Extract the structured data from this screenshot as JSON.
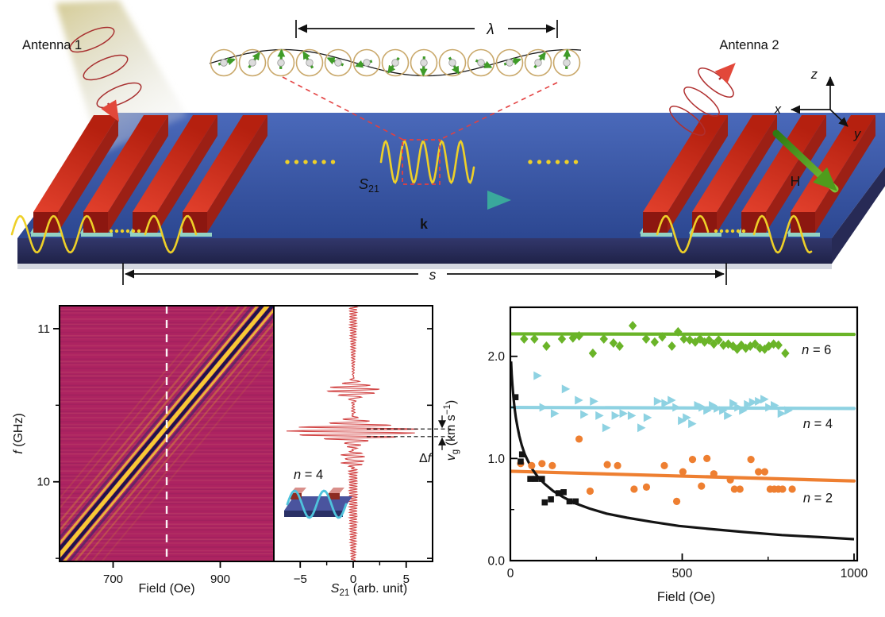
{
  "figure": {
    "type": "scientific-figure",
    "background": "#ffffff"
  },
  "diagram": {
    "antenna1_label": "Antenna 1",
    "antenna2_label": "Antenna 2",
    "lambda_label": "λ",
    "s21_main": "S",
    "s21_sub": "21",
    "k_label": "k",
    "h_label": "H",
    "axis_x": "x",
    "axis_y": "y",
    "axis_z": "z",
    "s_label": "s",
    "colors": {
      "substrate_top": "#33539f",
      "substrate_front": "#262a57",
      "electrode_top": "#d93420",
      "electrode_front": "#8c1710",
      "electrode_side": "#9c2015",
      "electrode_pad": "#93d2c4",
      "spin_wave_yellow": "#eed028",
      "precession_arrow_green": "#3f9b28",
      "precession_ring_tan": "#c9a86a",
      "k_arrow_teal": "#3aa89c",
      "h_arrow_green": "#55a322",
      "dashed_red": "#e34040"
    }
  },
  "chart_data": [
    {
      "id": "dispersion_heatmap",
      "type": "heatmap",
      "xlabel": "Field (Oe)",
      "ylabel_parts": [
        {
          "t": "f",
          "italic": true
        },
        {
          "t": " (GHz)"
        }
      ],
      "xlim": [
        600,
        1000
      ],
      "ylim": [
        9.48,
        11.15
      ],
      "xticks": [
        {
          "v": 700,
          "label": "700"
        },
        {
          "v": 900,
          "label": "900"
        }
      ],
      "yticks": [
        {
          "v": 11,
          "label": "11"
        },
        {
          "v": 10,
          "label": "10"
        }
      ],
      "yticks_minor": [
        10.5,
        9.5
      ],
      "colormap_bg": "#ad2361",
      "stripe_bright": "#f6cb35",
      "stripe_dark": "#15154a",
      "dashed_guide_x": 800,
      "band": {
        "x": [
          600,
          1000
        ],
        "f": [
          9.52,
          11.2
        ],
        "note": "spin-wave transmission band"
      }
    },
    {
      "id": "s21_trace",
      "type": "line",
      "xlabel_parts": [
        {
          "t": "S",
          "italic": true
        },
        {
          "t": "21",
          "script": "sub"
        },
        {
          "t": " (arb. unit)"
        }
      ],
      "xlim": [
        -7.4,
        7.4
      ],
      "xticks": [
        {
          "v": -5,
          "label": "−5"
        },
        {
          "v": 0,
          "label": "0"
        },
        {
          "v": 5,
          "label": "5"
        }
      ],
      "xticks_minor": [
        -2.5,
        2.5
      ],
      "ylim": [
        9.48,
        11.15
      ],
      "right_ticks": [
        9.5,
        10,
        10.5,
        11
      ],
      "color": "#d24646",
      "packets": [
        {
          "center_ghz": 10.33,
          "amplitude": 6.4,
          "sigma_ghz": 0.055
        },
        {
          "center_ghz": 10.6,
          "amplitude": 2.6,
          "sigma_ghz": 0.045
        },
        {
          "center_ghz": 10.15,
          "amplitude": 1.1,
          "sigma_ghz": 0.05
        }
      ],
      "noise_amplitude": 0.4,
      "carrier_period_ghz": 0.026,
      "delta_f_parts": [
        {
          "t": "Δ"
        },
        {
          "t": "f",
          "italic": true
        }
      ],
      "delta_f_guides_ghz": [
        10.345,
        10.295
      ],
      "inset_label_parts": [
        {
          "t": "n",
          "italic": true
        },
        {
          "t": " = 4"
        }
      ],
      "inset_color": "#4fc3dc"
    },
    {
      "id": "group_velocity",
      "type": "scatter",
      "xlabel": "Field (Oe)",
      "ylabel_parts": [
        {
          "t": "v",
          "italic": true
        },
        {
          "t": "g",
          "script": "sub"
        },
        {
          "t": " (km s"
        },
        {
          "t": "−1",
          "script": "super"
        },
        {
          "t": ")"
        }
      ],
      "xlim": [
        0,
        1010
      ],
      "ylim": [
        0,
        2.48
      ],
      "xticks": [
        {
          "v": 0,
          "label": "0"
        },
        {
          "v": 500,
          "label": "500"
        },
        {
          "v": 1000,
          "label": "1000"
        }
      ],
      "xticks_minor": [
        250,
        750
      ],
      "yticks": [
        {
          "v": 0,
          "label": "0.0"
        },
        {
          "v": 1,
          "label": "1.0"
        },
        {
          "v": 2,
          "label": "2.0"
        }
      ],
      "yticks_minor": [
        0.5,
        1.5
      ],
      "series": [
        {
          "name": "n = 6",
          "label_parts": [
            {
              "t": "n",
              "italic": true
            },
            {
              "t": " = 6"
            }
          ],
          "label_xy": [
            848,
            2.02
          ],
          "marker": "diamond",
          "color": "#6ab428",
          "fit_line": [
            [
              0,
              2.22
            ],
            [
              1000,
              2.215
            ]
          ],
          "points": [
            [
              40,
              2.17
            ],
            [
              70,
              2.17
            ],
            [
              105,
              2.1
            ],
            [
              150,
              2.17
            ],
            [
              182,
              2.18
            ],
            [
              200,
              2.2
            ],
            [
              240,
              2.03
            ],
            [
              272,
              2.17
            ],
            [
              300,
              2.13
            ],
            [
              318,
              2.1
            ],
            [
              356,
              2.3
            ],
            [
              395,
              2.17
            ],
            [
              420,
              2.14
            ],
            [
              442,
              2.19
            ],
            [
              470,
              2.1
            ],
            [
              488,
              2.24
            ],
            [
              505,
              2.17
            ],
            [
              522,
              2.16
            ],
            [
              538,
              2.14
            ],
            [
              552,
              2.17
            ],
            [
              565,
              2.14
            ],
            [
              578,
              2.16
            ],
            [
              592,
              2.12
            ],
            [
              606,
              2.16
            ],
            [
              620,
              2.11
            ],
            [
              634,
              2.12
            ],
            [
              648,
              2.1
            ],
            [
              660,
              2.07
            ],
            [
              672,
              2.11
            ],
            [
              685,
              2.08
            ],
            [
              698,
              2.1
            ],
            [
              712,
              2.12
            ],
            [
              726,
              2.08
            ],
            [
              740,
              2.07
            ],
            [
              752,
              2.1
            ],
            [
              766,
              2.12
            ],
            [
              780,
              2.11
            ],
            [
              800,
              2.03
            ]
          ]
        },
        {
          "name": "n = 4",
          "label_parts": [
            {
              "t": "n",
              "italic": true
            },
            {
              "t": " = 4"
            }
          ],
          "label_xy": [
            852,
            1.3
          ],
          "marker": "triangle-right",
          "color": "#8ed2e2",
          "fit_line": [
            [
              0,
              1.5
            ],
            [
              1000,
              1.49
            ]
          ],
          "points": [
            [
              78,
              1.81
            ],
            [
              95,
              1.5
            ],
            [
              128,
              1.44
            ],
            [
              160,
              1.68
            ],
            [
              198,
              1.57
            ],
            [
              214,
              1.43
            ],
            [
              242,
              1.56
            ],
            [
              258,
              1.42
            ],
            [
              278,
              1.3
            ],
            [
              305,
              1.42
            ],
            [
              328,
              1.44
            ],
            [
              352,
              1.42
            ],
            [
              380,
              1.3
            ],
            [
              398,
              1.4
            ],
            [
              428,
              1.56
            ],
            [
              450,
              1.54
            ],
            [
              468,
              1.57
            ],
            [
              482,
              1.5
            ],
            [
              498,
              1.37
            ],
            [
              512,
              1.4
            ],
            [
              528,
              1.34
            ],
            [
              545,
              1.52
            ],
            [
              558,
              1.5
            ],
            [
              572,
              1.47
            ],
            [
              588,
              1.52
            ],
            [
              602,
              1.49
            ],
            [
              618,
              1.47
            ],
            [
              632,
              1.42
            ],
            [
              648,
              1.54
            ],
            [
              662,
              1.5
            ],
            [
              676,
              1.47
            ],
            [
              690,
              1.53
            ],
            [
              705,
              1.55
            ],
            [
              722,
              1.56
            ],
            [
              738,
              1.58
            ],
            [
              752,
              1.5
            ],
            [
              768,
              1.52
            ],
            [
              788,
              1.44
            ],
            [
              808,
              1.47
            ]
          ]
        },
        {
          "name": "n = 2",
          "label_parts": [
            {
              "t": "n",
              "italic": true
            },
            {
              "t": " = 2"
            }
          ],
          "label_xy": [
            852,
            0.57
          ],
          "marker": "circle",
          "color": "#ee7f31",
          "fit_line": [
            [
              0,
              0.875
            ],
            [
              1000,
              0.78
            ]
          ],
          "points": [
            [
              30,
              0.95
            ],
            [
              62,
              0.93
            ],
            [
              92,
              0.95
            ],
            [
              122,
              0.93
            ],
            [
              200,
              1.19
            ],
            [
              232,
              0.68
            ],
            [
              282,
              0.94
            ],
            [
              312,
              0.93
            ],
            [
              360,
              0.7
            ],
            [
              396,
              0.72
            ],
            [
              448,
              0.93
            ],
            [
              484,
              0.58
            ],
            [
              502,
              0.87
            ],
            [
              530,
              0.99
            ],
            [
              556,
              0.73
            ],
            [
              572,
              1.0
            ],
            [
              592,
              0.85
            ],
            [
              640,
              0.79
            ],
            [
              652,
              0.7
            ],
            [
              668,
              0.7
            ],
            [
              700,
              0.99
            ],
            [
              722,
              0.87
            ],
            [
              740,
              0.87
            ],
            [
              756,
              0.7
            ],
            [
              768,
              0.7
            ],
            [
              780,
              0.7
            ],
            [
              792,
              0.7
            ],
            [
              820,
              0.7
            ]
          ]
        },
        {
          "name": "lowest-mode data",
          "marker": "square",
          "color": "#141414",
          "points": [
            [
              15,
              1.6
            ],
            [
              30,
              0.97
            ],
            [
              34,
              1.04
            ],
            [
              58,
              0.8
            ],
            [
              74,
              0.8
            ],
            [
              92,
              0.8
            ],
            [
              100,
              0.57
            ],
            [
              118,
              0.6
            ],
            [
              140,
              0.66
            ],
            [
              155,
              0.67
            ],
            [
              172,
              0.58
            ],
            [
              190,
              0.58
            ]
          ]
        },
        {
          "name": "theory curve",
          "marker": "none",
          "curve": true,
          "color": "#141414",
          "points": [
            [
              2,
              1.95
            ],
            [
              4,
              1.82
            ],
            [
              6,
              1.72
            ],
            [
              9,
              1.6
            ],
            [
              12,
              1.5
            ],
            [
              16,
              1.4
            ],
            [
              20,
              1.32
            ],
            [
              26,
              1.22
            ],
            [
              33,
              1.13
            ],
            [
              42,
              1.04
            ],
            [
              52,
              0.97
            ],
            [
              65,
              0.89
            ],
            [
              80,
              0.82
            ],
            [
              100,
              0.75
            ],
            [
              125,
              0.68
            ],
            [
              155,
              0.62
            ],
            [
              190,
              0.56
            ],
            [
              230,
              0.51
            ],
            [
              280,
              0.46
            ],
            [
              340,
              0.42
            ],
            [
              410,
              0.38
            ],
            [
              490,
              0.34
            ],
            [
              580,
              0.31
            ],
            [
              680,
              0.28
            ],
            [
              790,
              0.25
            ],
            [
              900,
              0.23
            ],
            [
              1000,
              0.21
            ]
          ]
        }
      ]
    }
  ]
}
